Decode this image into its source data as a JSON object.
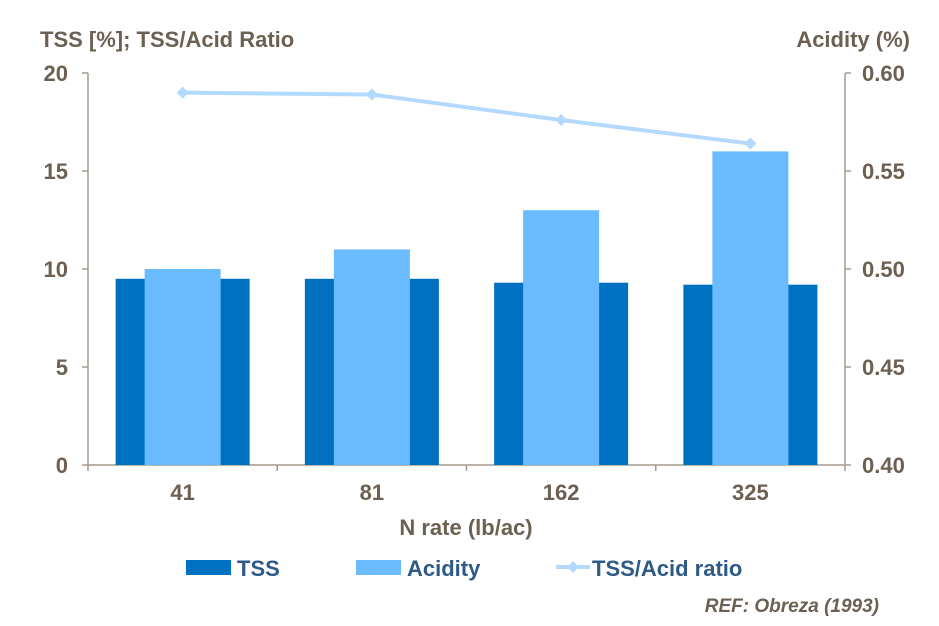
{
  "chart_data": {
    "type": "bar+line",
    "categories": [
      "41",
      "81",
      "162",
      "325"
    ],
    "series": [
      {
        "name": "TSS",
        "axis": "left",
        "kind": "bar",
        "color": "#0070c0",
        "values": [
          9.5,
          9.5,
          9.3,
          9.2
        ]
      },
      {
        "name": "Acidity",
        "axis": "right",
        "kind": "bar",
        "color": "#6bbcff",
        "values": [
          0.5,
          0.51,
          0.53,
          0.56
        ]
      },
      {
        "name": "TSS/Acid ratio",
        "axis": "left",
        "kind": "line",
        "color": "#b3d9ff",
        "values": [
          19.0,
          18.9,
          17.6,
          16.4
        ]
      }
    ],
    "left_axis": {
      "title": "TSS [%];  TSS/Acid Ratio",
      "ylim": [
        0,
        20
      ],
      "ticks": [
        "0",
        "5",
        "10",
        "15",
        "20"
      ]
    },
    "right_axis": {
      "title": "Acidity (%)",
      "ylim": [
        0.4,
        0.6
      ],
      "ticks": [
        "0.40",
        "0.45",
        "0.50",
        "0.55",
        "0.60"
      ]
    },
    "xlabel": "N rate (lb/ac)",
    "legend": [
      "TSS",
      "Acidity",
      "TSS/Acid ratio"
    ],
    "reference": "REF: Obreza (1993)"
  }
}
